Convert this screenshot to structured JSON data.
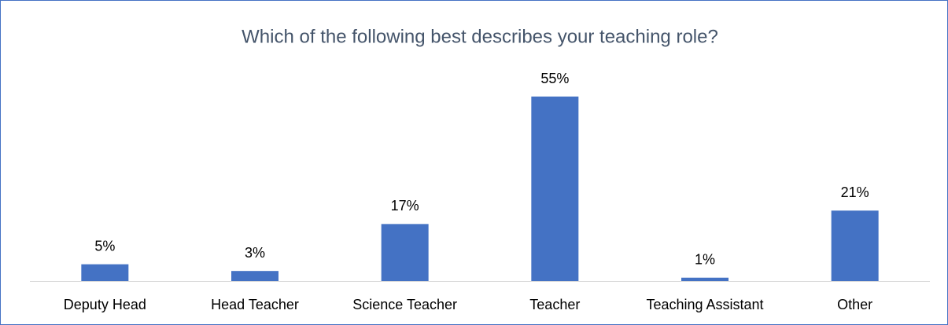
{
  "chart_data": {
    "type": "bar",
    "title": "Which of the following best describes your teaching role?",
    "categories": [
      "Deputy Head",
      "Head Teacher",
      "Science Teacher",
      "Teacher",
      "Teaching Assistant",
      "Other"
    ],
    "values": [
      5,
      3,
      17,
      55,
      1,
      21
    ],
    "value_labels": [
      "5%",
      "3%",
      "17%",
      "55%",
      "1%",
      "21%"
    ],
    "color": "#4472c4"
  }
}
